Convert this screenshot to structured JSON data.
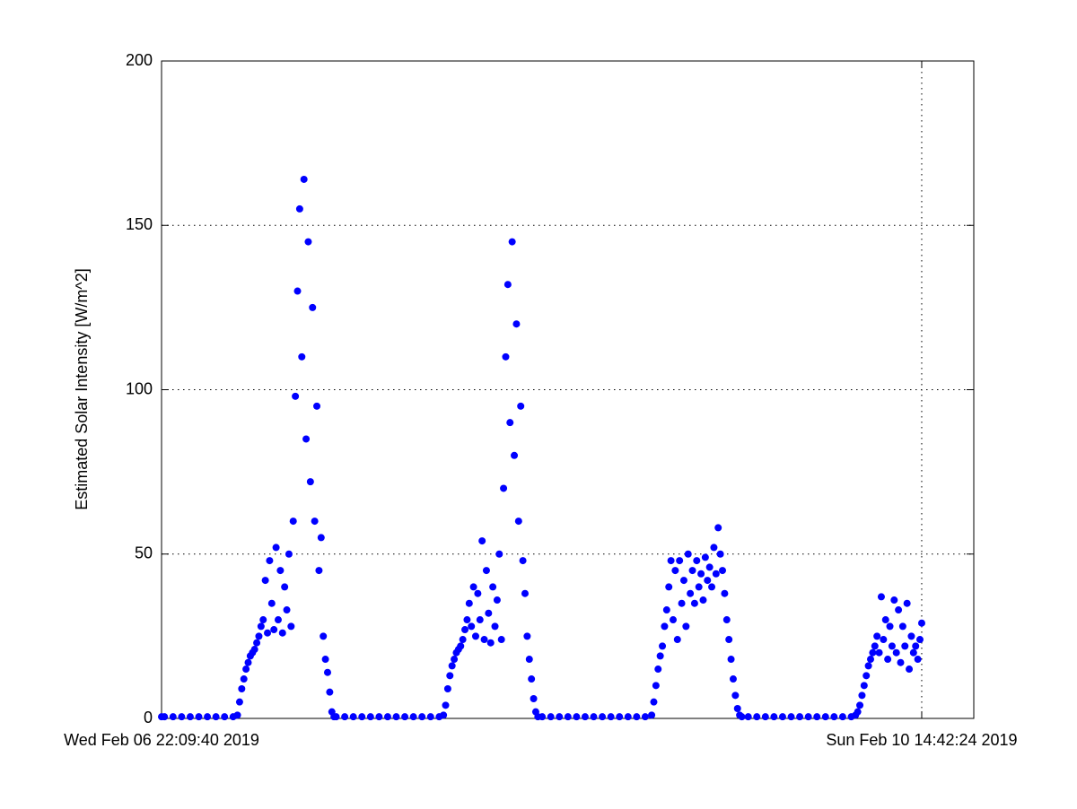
{
  "chart_data": {
    "type": "scatter",
    "ylabel": "Estimated Solar Intensity [W/m^2]",
    "color": "#0000ff",
    "grid": true,
    "xlim": [
      "2019-02-06T22:09:40",
      "2019-02-10T20:46:20"
    ],
    "xticks": [
      {
        "value": "2019-02-06T22:09:40",
        "label": "Wed Feb 06 22:09:40 2019"
      },
      {
        "value": "2019-02-10T14:42:24",
        "label": "Sun Feb 10 14:42:24 2019"
      }
    ],
    "ylim": [
      0,
      200
    ],
    "yticks": [
      0,
      50,
      100,
      150,
      200
    ],
    "x": [
      "2019-02-06T22:09:40",
      "2019-02-06T22:30:00",
      "2019-02-06T23:30:00",
      "2019-02-07T00:30:00",
      "2019-02-07T01:30:00",
      "2019-02-07T02:30:00",
      "2019-02-07T03:30:00",
      "2019-02-07T04:30:00",
      "2019-02-07T05:30:00",
      "2019-02-07T06:30:00",
      "2019-02-07T07:00:00",
      "2019-02-07T07:15:00",
      "2019-02-07T07:30:00",
      "2019-02-07T07:45:00",
      "2019-02-07T08:00:00",
      "2019-02-07T08:15:00",
      "2019-02-07T08:30:00",
      "2019-02-07T08:45:00",
      "2019-02-07T09:00:00",
      "2019-02-07T09:15:00",
      "2019-02-07T09:30:00",
      "2019-02-07T09:45:00",
      "2019-02-07T10:00:00",
      "2019-02-07T10:15:00",
      "2019-02-07T10:30:00",
      "2019-02-07T10:45:00",
      "2019-02-07T11:00:00",
      "2019-02-07T11:15:00",
      "2019-02-07T11:30:00",
      "2019-02-07T11:45:00",
      "2019-02-07T12:00:00",
      "2019-02-07T12:15:00",
      "2019-02-07T12:30:00",
      "2019-02-07T12:45:00",
      "2019-02-07T13:00:00",
      "2019-02-07T13:15:00",
      "2019-02-07T13:30:00",
      "2019-02-07T13:45:00",
      "2019-02-07T14:00:00",
      "2019-02-07T14:15:00",
      "2019-02-07T14:30:00",
      "2019-02-07T14:45:00",
      "2019-02-07T15:00:00",
      "2019-02-07T15:15:00",
      "2019-02-07T15:30:00",
      "2019-02-07T15:45:00",
      "2019-02-07T16:00:00",
      "2019-02-07T16:15:00",
      "2019-02-07T16:30:00",
      "2019-02-07T16:45:00",
      "2019-02-07T17:00:00",
      "2019-02-07T17:15:00",
      "2019-02-07T17:30:00",
      "2019-02-07T17:45:00",
      "2019-02-07T18:00:00",
      "2019-02-07T18:15:00",
      "2019-02-07T18:30:00",
      "2019-02-07T19:30:00",
      "2019-02-07T20:30:00",
      "2019-02-07T21:30:00",
      "2019-02-07T22:30:00",
      "2019-02-07T23:30:00",
      "2019-02-08T00:30:00",
      "2019-02-08T01:30:00",
      "2019-02-08T02:30:00",
      "2019-02-08T03:30:00",
      "2019-02-08T04:30:00",
      "2019-02-08T05:30:00",
      "2019-02-08T06:30:00",
      "2019-02-08T07:00:00",
      "2019-02-08T07:15:00",
      "2019-02-08T07:30:00",
      "2019-02-08T07:45:00",
      "2019-02-08T08:00:00",
      "2019-02-08T08:15:00",
      "2019-02-08T08:30:00",
      "2019-02-08T08:45:00",
      "2019-02-08T09:00:00",
      "2019-02-08T09:15:00",
      "2019-02-08T09:30:00",
      "2019-02-08T09:45:00",
      "2019-02-08T10:00:00",
      "2019-02-08T10:15:00",
      "2019-02-08T10:30:00",
      "2019-02-08T10:45:00",
      "2019-02-08T11:00:00",
      "2019-02-08T11:15:00",
      "2019-02-08T11:30:00",
      "2019-02-08T11:45:00",
      "2019-02-08T12:00:00",
      "2019-02-08T12:15:00",
      "2019-02-08T12:30:00",
      "2019-02-08T12:45:00",
      "2019-02-08T13:00:00",
      "2019-02-08T13:15:00",
      "2019-02-08T13:30:00",
      "2019-02-08T13:45:00",
      "2019-02-08T14:00:00",
      "2019-02-08T14:15:00",
      "2019-02-08T14:30:00",
      "2019-02-08T14:45:00",
      "2019-02-08T15:00:00",
      "2019-02-08T15:15:00",
      "2019-02-08T15:30:00",
      "2019-02-08T15:45:00",
      "2019-02-08T16:00:00",
      "2019-02-08T16:15:00",
      "2019-02-08T16:30:00",
      "2019-02-08T16:45:00",
      "2019-02-08T17:00:00",
      "2019-02-08T17:15:00",
      "2019-02-08T17:30:00",
      "2019-02-08T17:45:00",
      "2019-02-08T18:00:00",
      "2019-02-08T18:30:00",
      "2019-02-08T19:30:00",
      "2019-02-08T20:30:00",
      "2019-02-08T21:30:00",
      "2019-02-08T22:30:00",
      "2019-02-08T23:30:00",
      "2019-02-09T00:30:00",
      "2019-02-09T01:30:00",
      "2019-02-09T02:30:00",
      "2019-02-09T03:30:00",
      "2019-02-09T04:30:00",
      "2019-02-09T05:30:00",
      "2019-02-09T06:30:00",
      "2019-02-09T07:15:00",
      "2019-02-09T07:30:00",
      "2019-02-09T07:45:00",
      "2019-02-09T08:00:00",
      "2019-02-09T08:15:00",
      "2019-02-09T08:30:00",
      "2019-02-09T08:45:00",
      "2019-02-09T09:00:00",
      "2019-02-09T09:15:00",
      "2019-02-09T09:30:00",
      "2019-02-09T09:45:00",
      "2019-02-09T10:00:00",
      "2019-02-09T10:15:00",
      "2019-02-09T10:30:00",
      "2019-02-09T10:45:00",
      "2019-02-09T11:00:00",
      "2019-02-09T11:15:00",
      "2019-02-09T11:30:00",
      "2019-02-09T11:45:00",
      "2019-02-09T12:00:00",
      "2019-02-09T12:15:00",
      "2019-02-09T12:30:00",
      "2019-02-09T12:45:00",
      "2019-02-09T13:00:00",
      "2019-02-09T13:15:00",
      "2019-02-09T13:30:00",
      "2019-02-09T13:45:00",
      "2019-02-09T14:00:00",
      "2019-02-09T14:15:00",
      "2019-02-09T14:30:00",
      "2019-02-09T14:45:00",
      "2019-02-09T15:00:00",
      "2019-02-09T15:15:00",
      "2019-02-09T15:30:00",
      "2019-02-09T15:45:00",
      "2019-02-09T16:00:00",
      "2019-02-09T16:15:00",
      "2019-02-09T16:30:00",
      "2019-02-09T16:45:00",
      "2019-02-09T17:00:00",
      "2019-02-09T17:15:00",
      "2019-02-09T17:30:00",
      "2019-02-09T17:45:00",
      "2019-02-09T18:30:00",
      "2019-02-09T19:30:00",
      "2019-02-09T20:30:00",
      "2019-02-09T21:30:00",
      "2019-02-09T22:30:00",
      "2019-02-09T23:30:00",
      "2019-02-10T00:30:00",
      "2019-02-10T01:30:00",
      "2019-02-10T02:30:00",
      "2019-02-10T03:30:00",
      "2019-02-10T04:30:00",
      "2019-02-10T05:30:00",
      "2019-02-10T06:30:00",
      "2019-02-10T07:00:00",
      "2019-02-10T07:15:00",
      "2019-02-10T07:30:00",
      "2019-02-10T07:45:00",
      "2019-02-10T08:00:00",
      "2019-02-10T08:15:00",
      "2019-02-10T08:30:00",
      "2019-02-10T08:45:00",
      "2019-02-10T09:00:00",
      "2019-02-10T09:15:00",
      "2019-02-10T09:30:00",
      "2019-02-10T09:45:00",
      "2019-02-10T10:00:00",
      "2019-02-10T10:15:00",
      "2019-02-10T10:30:00",
      "2019-02-10T10:45:00",
      "2019-02-10T11:00:00",
      "2019-02-10T11:15:00",
      "2019-02-10T11:30:00",
      "2019-02-10T11:45:00",
      "2019-02-10T12:00:00",
      "2019-02-10T12:15:00",
      "2019-02-10T12:30:00",
      "2019-02-10T12:45:00",
      "2019-02-10T13:00:00",
      "2019-02-10T13:15:00",
      "2019-02-10T13:30:00",
      "2019-02-10T13:45:00",
      "2019-02-10T14:00:00",
      "2019-02-10T14:15:00",
      "2019-02-10T14:30:00",
      "2019-02-10T14:42:24"
    ],
    "values": [
      0.5,
      0.5,
      0.5,
      0.5,
      0.5,
      0.5,
      0.5,
      0.5,
      0.5,
      0.5,
      1,
      5,
      9,
      12,
      15,
      17,
      19,
      20,
      21,
      23,
      25,
      28,
      30,
      42,
      26,
      48,
      35,
      27,
      52,
      30,
      45,
      26,
      40,
      33,
      50,
      28,
      60,
      98,
      130,
      155,
      110,
      164,
      85,
      145,
      72,
      125,
      60,
      95,
      45,
      55,
      25,
      18,
      14,
      8,
      2,
      0.5,
      0.5,
      0.5,
      0.5,
      0.5,
      0.5,
      0.5,
      0.5,
      0.5,
      0.5,
      0.5,
      0.5,
      0.5,
      0.5,
      1,
      4,
      9,
      13,
      16,
      18,
      20,
      21,
      22,
      24,
      27,
      30,
      35,
      28,
      40,
      25,
      38,
      30,
      54,
      24,
      45,
      32,
      23,
      40,
      28,
      36,
      50,
      24,
      70,
      110,
      132,
      90,
      145,
      80,
      120,
      60,
      95,
      48,
      38,
      25,
      18,
      12,
      6,
      2,
      0.5,
      0.5,
      0.5,
      0.5,
      0.5,
      0.5,
      0.5,
      0.5,
      0.5,
      0.5,
      0.5,
      0.5,
      0.5,
      0.5,
      1,
      5,
      10,
      15,
      19,
      22,
      28,
      33,
      40,
      48,
      30,
      45,
      24,
      48,
      35,
      42,
      28,
      50,
      38,
      45,
      35,
      48,
      40,
      44,
      36,
      49,
      42,
      46,
      40,
      52,
      44,
      58,
      50,
      45,
      38,
      30,
      24,
      18,
      12,
      7,
      3,
      1,
      0.5,
      0.5,
      0.5,
      0.5,
      0.5,
      0.5,
      0.5,
      0.5,
      0.5,
      0.5,
      0.5,
      0.5,
      0.5,
      0.5,
      1,
      2,
      4,
      7,
      10,
      13,
      16,
      18,
      20,
      22,
      25,
      20,
      37,
      24,
      30,
      18,
      28,
      22,
      36,
      20,
      33,
      17,
      28,
      22,
      35,
      15,
      25,
      20,
      22,
      18,
      24,
      29
    ]
  }
}
